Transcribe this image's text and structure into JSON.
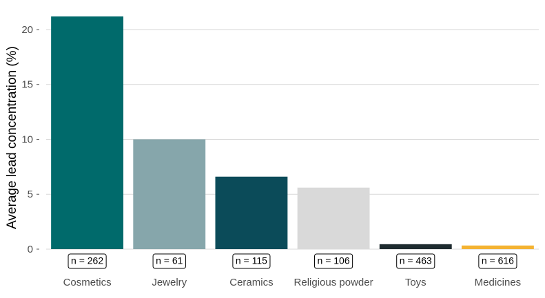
{
  "chart_data": {
    "type": "bar",
    "y_label": "Average lead concentration (%)",
    "categories": [
      "Cosmetics",
      "Jewelry",
      "Ceramics",
      "Religious powder",
      "Toys",
      "Medicines"
    ],
    "values": [
      21.2,
      10.0,
      6.6,
      5.6,
      0.45,
      0.33
    ],
    "colors": [
      "#006a6b",
      "#86a6ab",
      "#0b4b59",
      "#d9d9d9",
      "#1e2b2f",
      "#f4b332"
    ],
    "annotations": [
      "n = 262",
      "n = 61",
      "n = 115",
      "n = 106",
      "n = 463",
      "n = 616"
    ],
    "ylim": [
      0,
      21.5
    ],
    "yticks": [
      0,
      5,
      10,
      15,
      20
    ],
    "grid": true
  }
}
